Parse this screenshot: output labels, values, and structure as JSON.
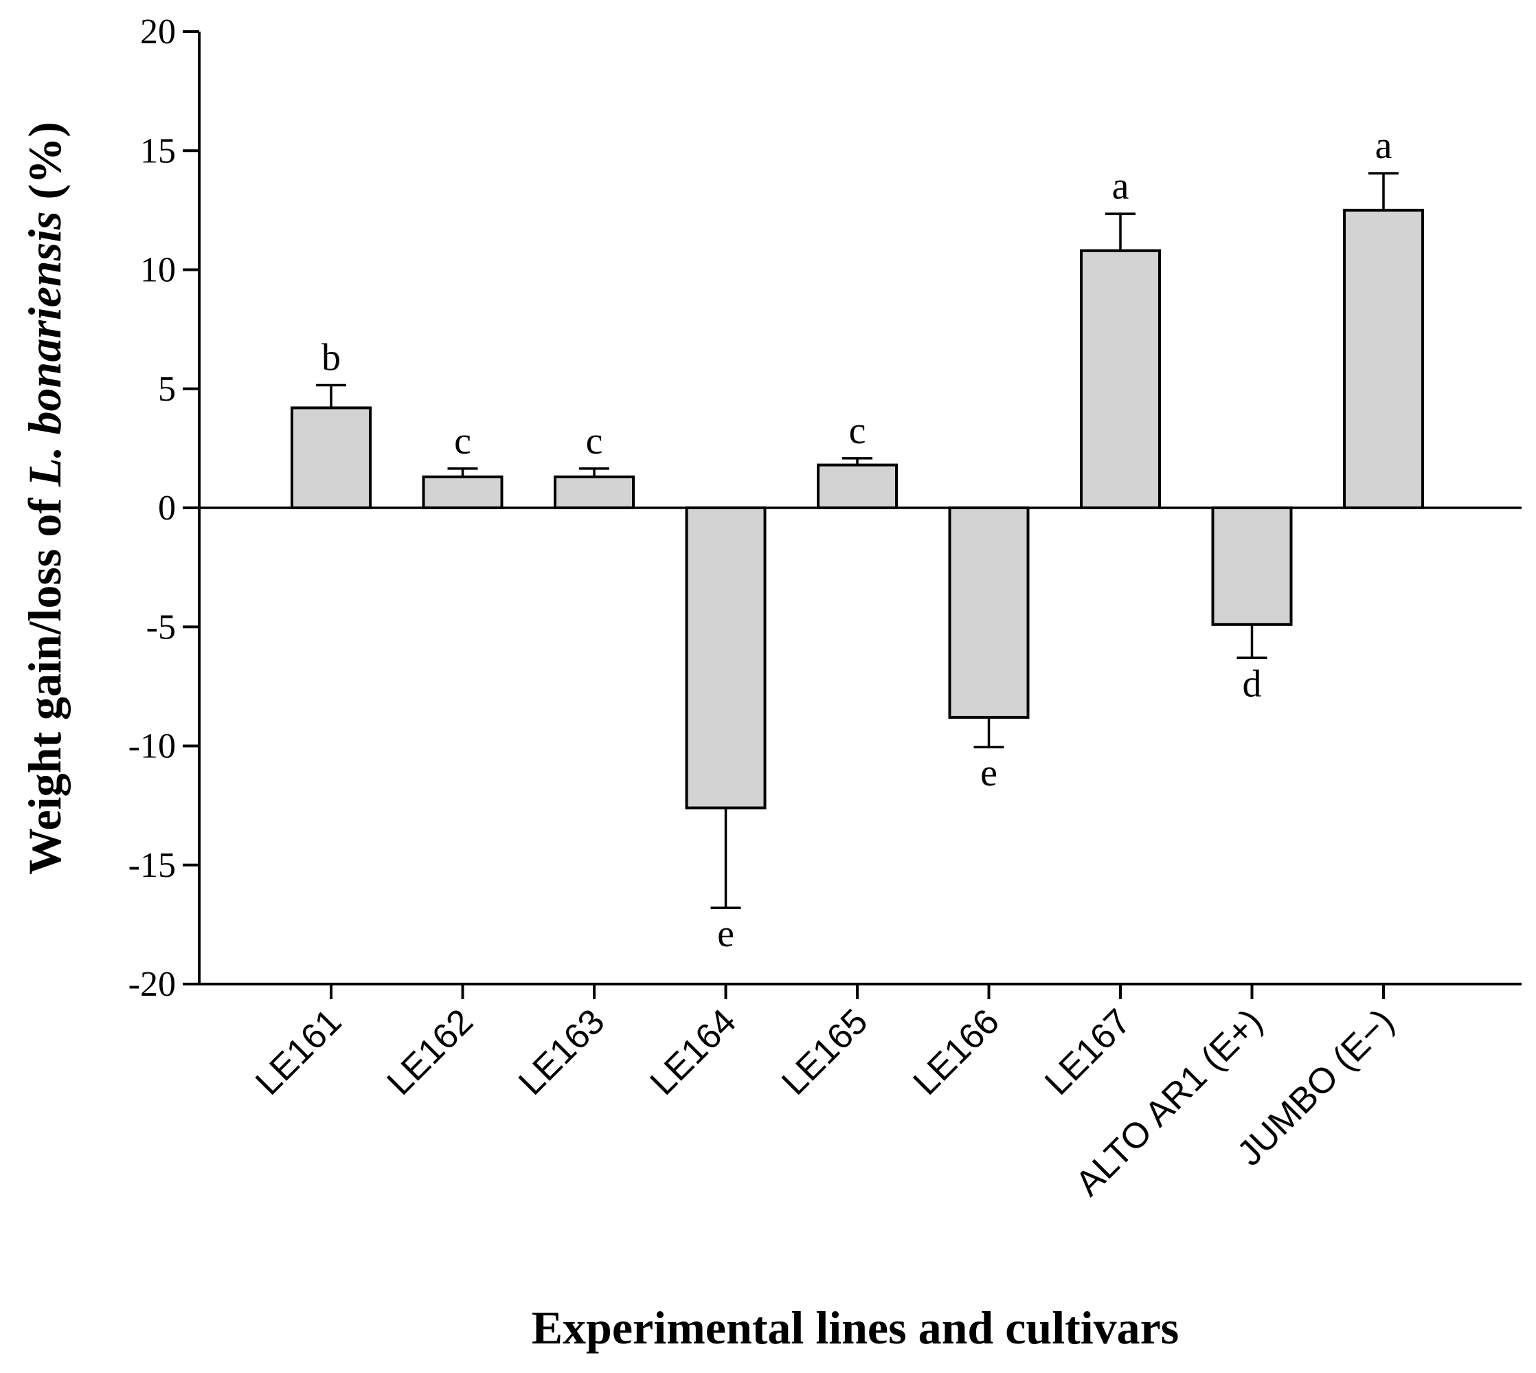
{
  "chart_data": {
    "type": "bar",
    "title": "",
    "xlabel": "Experimental lines and cultivars",
    "ylabel": {
      "prefix": "Weight gain/loss of ",
      "italic": "L. bonariensis",
      "suffix": " (%)"
    },
    "categories": [
      "LE161",
      "LE162",
      "LE163",
      "LE164",
      "LE165",
      "LE166",
      "LE167",
      "ALTO AR1 (E+)",
      "JUMBO (E−)"
    ],
    "values": [
      4.2,
      1.3,
      1.3,
      -12.6,
      1.8,
      -8.8,
      10.8,
      -4.9,
      12.5
    ],
    "errors": [
      0.95,
      0.35,
      0.35,
      4.2,
      0.28,
      1.25,
      1.55,
      1.4,
      1.55
    ],
    "significance_letters": [
      "b",
      "c",
      "c",
      "e",
      "c",
      "e",
      "a",
      "d",
      "a"
    ],
    "ylim": [
      -20,
      20
    ],
    "yticks": [
      20,
      15,
      10,
      5,
      0,
      -5,
      -10,
      -15,
      -20
    ],
    "ytick_labels": [
      "20",
      "15",
      "10",
      "5",
      "0",
      "-5",
      "-10",
      "-15",
      "-20"
    ],
    "grid": false,
    "legend": "none",
    "colors": {
      "bar_fill": "#d3d3d3",
      "stroke": "#000000",
      "background": "#ffffff"
    }
  }
}
